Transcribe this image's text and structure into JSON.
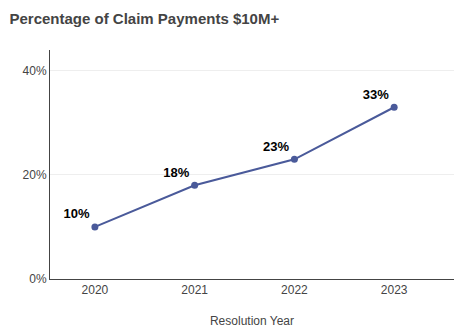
{
  "chart_data": {
    "type": "line",
    "title": "Percentage of Claim Payments $10M+",
    "xlabel": "Resolution Year",
    "x": [
      2020,
      2021,
      2022,
      2023
    ],
    "values": [
      0.1,
      0.18,
      0.23,
      0.33
    ],
    "value_labels": [
      "10%",
      "18%",
      "23%",
      "33%"
    ],
    "data_labels": true,
    "color": "#4a5a9a",
    "marker": "circle",
    "xlim": [
      2019.55,
      2023.6
    ],
    "xticks": [
      2020,
      2021,
      2022,
      2023
    ],
    "ylim": [
      0,
      0.44
    ],
    "yticks": [
      {
        "value": 0,
        "label": "0%"
      },
      {
        "value": 0.2,
        "label": "20%"
      },
      {
        "value": 0.4,
        "label": "40%"
      }
    ],
    "grid": true
  }
}
